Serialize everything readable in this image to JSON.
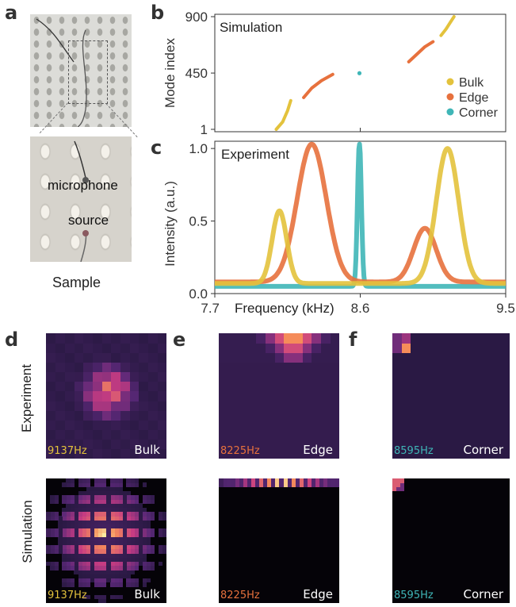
{
  "panels": {
    "a": "a",
    "b": "b",
    "c": "c",
    "d": "d",
    "e": "e",
    "f": "f"
  },
  "photo": {
    "microphone_label": "microphone",
    "source_label": "source",
    "caption": "Sample"
  },
  "colors": {
    "bulk": "#e3c23c",
    "edge": "#e7713d",
    "corner": "#3fb6b7"
  },
  "chart_data": [
    {
      "type": "scatter",
      "panel": "b",
      "annotation": "Simulation",
      "ylabel": "Mode index",
      "yticks": [
        "1",
        "450",
        "900"
      ],
      "xlim": [
        7.7,
        9.5
      ],
      "ylim": [
        1,
        900
      ],
      "legend": {
        "placement": "right",
        "entries": [
          {
            "name": "Bulk",
            "color": "#e3c23c"
          },
          {
            "name": "Edge",
            "color": "#e7713d"
          },
          {
            "name": "Corner",
            "color": "#3fb6b7"
          }
        ]
      },
      "series": [
        {
          "name": "Bulk",
          "segments": [
            {
              "x": [
                8.08,
                8.12,
                8.15,
                8.17
              ],
              "y": [
                1,
                60,
                150,
                230
              ]
            },
            {
              "x": [
                9.1,
                9.13,
                9.16,
                9.18
              ],
              "y": [
                750,
                800,
                860,
                900
              ]
            }
          ]
        },
        {
          "name": "Edge",
          "segments": [
            {
              "x": [
                8.25,
                8.3,
                8.36,
                8.43
              ],
              "y": [
                255,
                330,
                390,
                440
              ]
            },
            {
              "x": [
                8.9,
                8.95,
                9.0,
                9.05
              ],
              "y": [
                540,
                600,
                660,
                700
              ]
            }
          ]
        },
        {
          "name": "Corner",
          "segments": [
            {
              "x": [
                8.595
              ],
              "y": [
                449
              ]
            }
          ]
        }
      ]
    },
    {
      "type": "scatter",
      "panel": "c",
      "annotation": "Experiment",
      "xlabel": "Frequency (kHz)",
      "ylabel": "Intensity (a.u.)",
      "xticks": [
        "7.7",
        "8.6",
        "9.5"
      ],
      "yticks": [
        "0.0",
        "0.5",
        "1.0"
      ],
      "xlim": [
        7.7,
        9.5
      ],
      "ylim": [
        0,
        1.05
      ],
      "series": [
        {
          "name": "Bulk",
          "peaks": [
            [
              8.1,
              0.5,
              0.045
            ],
            [
              9.14,
              0.93,
              0.07
            ]
          ],
          "baseline": 0.07
        },
        {
          "name": "Edge",
          "peaks": [
            [
              8.3,
              0.95,
              0.09
            ],
            [
              9.0,
              0.37,
              0.07
            ]
          ],
          "baseline": 0.08
        },
        {
          "name": "Corner",
          "peaks": [
            [
              8.595,
              1.0,
              0.012
            ]
          ],
          "baseline": 0.05
        }
      ]
    }
  ],
  "maps": {
    "row_experiment": "Experiment",
    "row_simulation": "Simulation",
    "bulk": {
      "freq": "9137Hz",
      "label": "Bulk"
    },
    "edge": {
      "freq": "8225Hz",
      "label": "Edge"
    },
    "corner": {
      "freq": "8595Hz",
      "label": "Corner"
    }
  }
}
